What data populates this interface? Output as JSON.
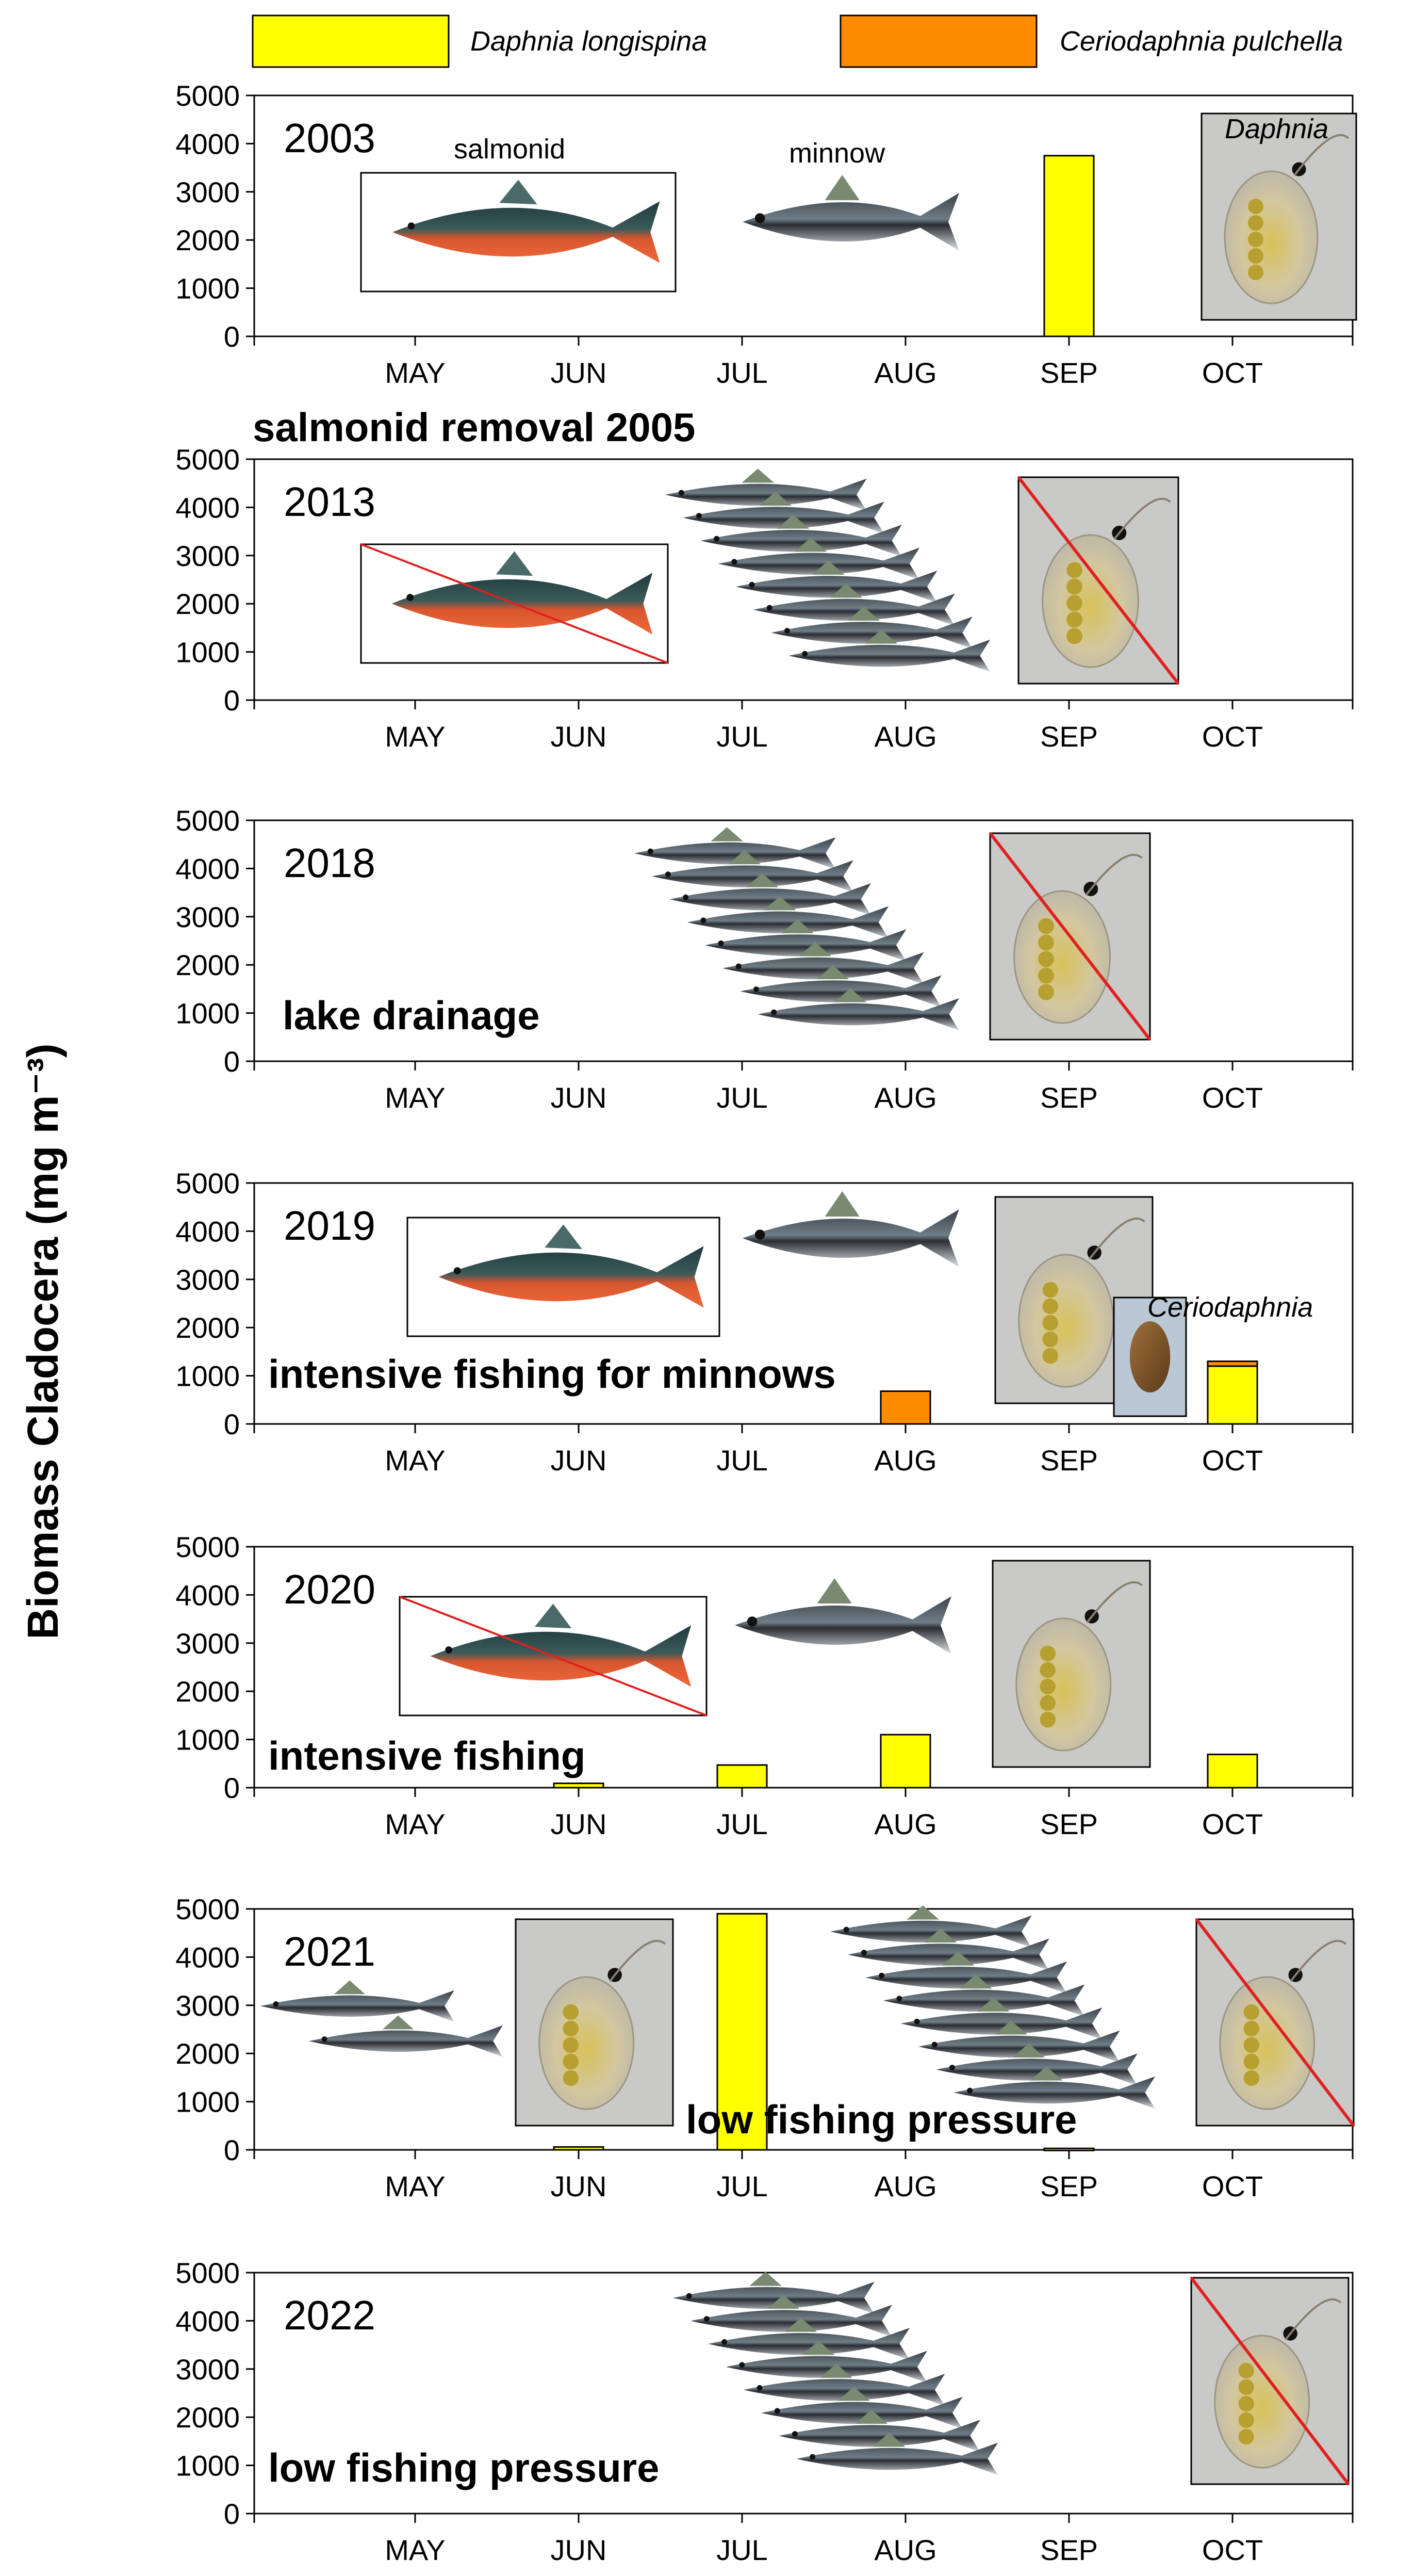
{
  "y_axis_label": "Biomass Cladocera (mg m⁻³)",
  "legend": [
    {
      "label": "Daphnia longispina",
      "color": "#FFFF00"
    },
    {
      "label": "Ceriodaphnia pulchella",
      "color": "#FF8C00"
    }
  ],
  "figure_labels": {
    "salmonid": "salmonid",
    "minnow": "minnow",
    "daphnia": "Daphnia",
    "ceriodaphnia": "Ceriodaphnia"
  },
  "chart_data": [
    {
      "type": "bar",
      "year": "2003",
      "categories": [
        "MAY",
        "JUN",
        "JUL",
        "AUG",
        "SEP",
        "OCT"
      ],
      "series": [
        {
          "name": "Daphnia longispina",
          "values": [
            0,
            0,
            0,
            0,
            3750,
            0
          ]
        },
        {
          "name": "Ceriodaphnia pulchella",
          "values": [
            0,
            0,
            0,
            0,
            0,
            0
          ]
        }
      ],
      "ylim": [
        0,
        5000
      ],
      "yticks": [
        0,
        1000,
        2000,
        3000,
        4000,
        5000
      ],
      "notes": [],
      "fish": [
        {
          "kind": "salmonid",
          "crossed": false
        },
        {
          "kind": "minnow",
          "crossed": false
        }
      ],
      "daphnia": [
        {
          "crossed": false
        }
      ]
    },
    {
      "type": "bar",
      "year": "2013",
      "categories": [
        "MAY",
        "JUN",
        "JUL",
        "AUG",
        "SEP",
        "OCT"
      ],
      "series": [
        {
          "name": "Daphnia longispina",
          "values": [
            0,
            0,
            0,
            0,
            0,
            0
          ]
        },
        {
          "name": "Ceriodaphnia pulchella",
          "values": [
            0,
            0,
            0,
            0,
            0,
            0
          ]
        }
      ],
      "ylim": [
        0,
        5000
      ],
      "yticks": [
        0,
        1000,
        2000,
        3000,
        4000,
        5000
      ],
      "notes": [
        "salmonid removal 2005"
      ],
      "fish": [
        {
          "kind": "salmonid",
          "crossed": true
        },
        {
          "kind": "minnow-school",
          "crossed": false
        }
      ],
      "daphnia": [
        {
          "crossed": true
        }
      ]
    },
    {
      "type": "bar",
      "year": "2018",
      "categories": [
        "MAY",
        "JUN",
        "JUL",
        "AUG",
        "SEP",
        "OCT"
      ],
      "series": [
        {
          "name": "Daphnia longispina",
          "values": [
            0,
            0,
            0,
            0,
            0,
            0
          ]
        },
        {
          "name": "Ceriodaphnia pulchella",
          "values": [
            0,
            0,
            0,
            0,
            0,
            0
          ]
        }
      ],
      "ylim": [
        0,
        5000
      ],
      "yticks": [
        0,
        1000,
        2000,
        3000,
        4000,
        5000
      ],
      "notes": [
        "lake drainage"
      ],
      "fish": [
        {
          "kind": "minnow-school",
          "crossed": false
        }
      ],
      "daphnia": [
        {
          "crossed": true
        }
      ]
    },
    {
      "type": "bar",
      "year": "2019",
      "categories": [
        "MAY",
        "JUN",
        "JUL",
        "AUG",
        "SEP",
        "OCT"
      ],
      "series": [
        {
          "name": "Daphnia longispina",
          "values": [
            0,
            0,
            0,
            0,
            0,
            1200
          ]
        },
        {
          "name": "Ceriodaphnia pulchella",
          "values": [
            0,
            0,
            0,
            680,
            0,
            100
          ]
        }
      ],
      "ylim": [
        0,
        5000
      ],
      "yticks": [
        0,
        1000,
        2000,
        3000,
        4000,
        5000
      ],
      "notes": [
        "intensive fishing for minnows"
      ],
      "fish": [
        {
          "kind": "salmonid",
          "crossed": false
        },
        {
          "kind": "minnow",
          "crossed": false
        }
      ],
      "daphnia": [
        {
          "crossed": false
        },
        {
          "crossed": false,
          "kind": "ceriodaphnia"
        }
      ]
    },
    {
      "type": "bar",
      "year": "2020",
      "categories": [
        "MAY",
        "JUN",
        "JUL",
        "AUG",
        "SEP",
        "OCT"
      ],
      "series": [
        {
          "name": "Daphnia longispina",
          "values": [
            0,
            90,
            470,
            1100,
            0,
            690
          ]
        },
        {
          "name": "Ceriodaphnia pulchella",
          "values": [
            0,
            0,
            0,
            0,
            0,
            0
          ]
        }
      ],
      "ylim": [
        0,
        5000
      ],
      "yticks": [
        0,
        1000,
        2000,
        3000,
        4000,
        5000
      ],
      "notes": [
        "intensive fishing"
      ],
      "fish": [
        {
          "kind": "salmonid",
          "crossed": true
        },
        {
          "kind": "minnow",
          "crossed": false
        }
      ],
      "daphnia": [
        {
          "crossed": false
        }
      ]
    },
    {
      "type": "bar",
      "year": "2021",
      "categories": [
        "MAY",
        "JUN",
        "JUL",
        "AUG",
        "SEP",
        "OCT"
      ],
      "series": [
        {
          "name": "Daphnia longispina",
          "values": [
            0,
            60,
            4900,
            0,
            30,
            0
          ]
        },
        {
          "name": "Ceriodaphnia pulchella",
          "values": [
            0,
            0,
            0,
            0,
            0,
            0
          ]
        }
      ],
      "ylim": [
        0,
        5000
      ],
      "yticks": [
        0,
        1000,
        2000,
        3000,
        4000,
        5000
      ],
      "notes": [
        "low fishing pressure"
      ],
      "fish": [
        {
          "kind": "minnow-pair",
          "crossed": false
        },
        {
          "kind": "minnow-school",
          "crossed": false
        }
      ],
      "daphnia": [
        {
          "crossed": false
        },
        {
          "crossed": true
        }
      ]
    },
    {
      "type": "bar",
      "year": "2022",
      "categories": [
        "MAY",
        "JUN",
        "JUL",
        "AUG",
        "SEP",
        "OCT"
      ],
      "series": [
        {
          "name": "Daphnia longispina",
          "values": [
            0,
            0,
            0,
            0,
            0,
            0
          ]
        },
        {
          "name": "Ceriodaphnia pulchella",
          "values": [
            0,
            0,
            0,
            0,
            0,
            0
          ]
        }
      ],
      "ylim": [
        0,
        5000
      ],
      "yticks": [
        0,
        1000,
        2000,
        3000,
        4000,
        5000
      ],
      "notes": [
        "low fishing pressure"
      ],
      "fish": [
        {
          "kind": "minnow-school",
          "crossed": false
        }
      ],
      "daphnia": [
        {
          "crossed": true
        }
      ]
    }
  ]
}
